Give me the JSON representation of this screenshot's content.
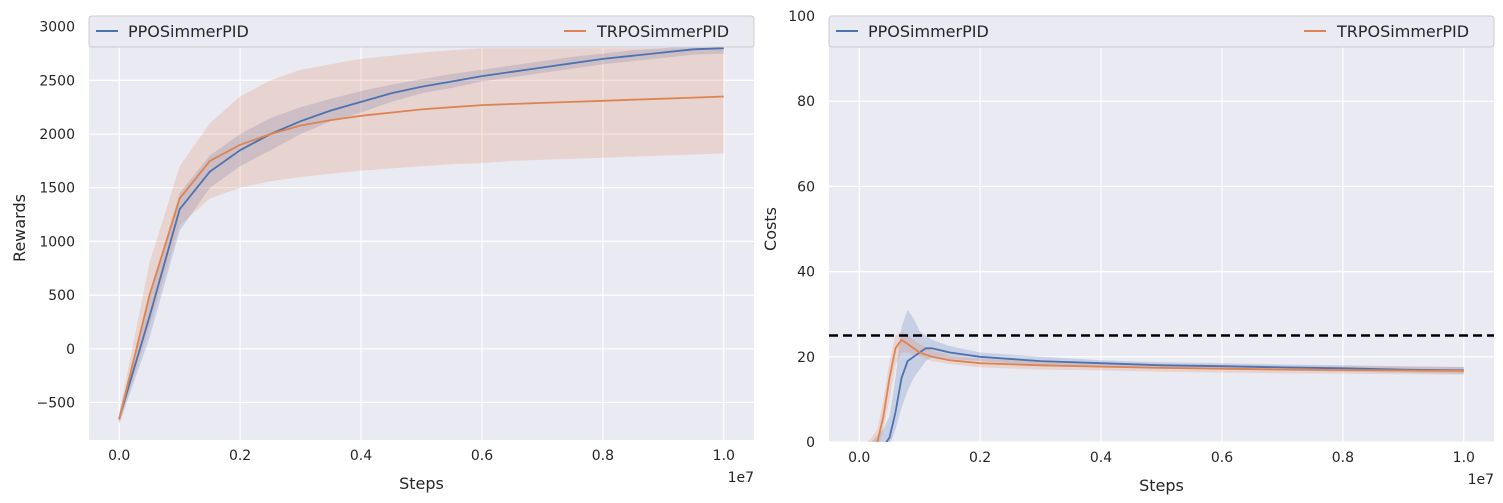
{
  "chart_data": [
    {
      "type": "line",
      "title": "",
      "xlabel": "Steps",
      "ylabel": "Rewards",
      "x_offset_text": "1e7",
      "xlim": [
        -0.05,
        1.05
      ],
      "ylim": [
        -850,
        3100
      ],
      "xticks": [
        0.0,
        0.2,
        0.4,
        0.6,
        0.8,
        1.0
      ],
      "xtick_labels": [
        "0.0",
        "0.2",
        "0.4",
        "0.6",
        "0.8",
        "1.0"
      ],
      "yticks": [
        -500,
        0,
        500,
        1000,
        1500,
        2000,
        2500,
        3000
      ],
      "ytick_labels": [
        "−500",
        "0",
        "500",
        "1000",
        "1500",
        "2000",
        "2500",
        "3000"
      ],
      "grid": true,
      "legend": "top, two columns",
      "series": [
        {
          "name": "PPOSimmerPID",
          "color": "#4c72b0",
          "x": [
            0.0,
            0.05,
            0.1,
            0.15,
            0.2,
            0.25,
            0.3,
            0.35,
            0.4,
            0.45,
            0.5,
            0.55,
            0.6,
            0.65,
            0.7,
            0.75,
            0.8,
            0.85,
            0.9,
            0.95,
            1.0
          ],
          "y": [
            -650,
            300,
            1300,
            1650,
            1850,
            2000,
            2120,
            2220,
            2300,
            2380,
            2440,
            2490,
            2540,
            2580,
            2620,
            2660,
            2700,
            2730,
            2760,
            2790,
            2800
          ],
          "lower": [
            -700,
            100,
            1100,
            1500,
            1700,
            1850,
            2000,
            2120,
            2200,
            2300,
            2380,
            2430,
            2490,
            2530,
            2570,
            2610,
            2650,
            2680,
            2710,
            2740,
            2750
          ],
          "upper": [
            -600,
            500,
            1450,
            1800,
            2000,
            2150,
            2250,
            2330,
            2400,
            2460,
            2510,
            2560,
            2600,
            2640,
            2680,
            2720,
            2750,
            2780,
            2800,
            2830,
            2850
          ]
        },
        {
          "name": "TRPOSimmerPID",
          "color": "#dd8452",
          "x": [
            0.0,
            0.05,
            0.1,
            0.15,
            0.2,
            0.25,
            0.3,
            0.35,
            0.4,
            0.45,
            0.5,
            0.55,
            0.6,
            0.65,
            0.7,
            0.75,
            0.8,
            0.85,
            0.9,
            0.95,
            1.0
          ],
          "y": [
            -660,
            500,
            1400,
            1750,
            1900,
            2000,
            2080,
            2130,
            2170,
            2200,
            2230,
            2250,
            2270,
            2280,
            2290,
            2300,
            2310,
            2320,
            2330,
            2340,
            2350
          ],
          "lower": [
            -700,
            200,
            1150,
            1400,
            1500,
            1560,
            1600,
            1630,
            1660,
            1680,
            1700,
            1720,
            1730,
            1750,
            1760,
            1770,
            1780,
            1790,
            1800,
            1810,
            1820
          ],
          "upper": [
            -600,
            800,
            1700,
            2100,
            2350,
            2500,
            2600,
            2650,
            2700,
            2730,
            2760,
            2780,
            2800,
            2800,
            2800,
            2800,
            2800,
            2800,
            2800,
            2800,
            2800
          ]
        }
      ]
    },
    {
      "type": "line",
      "title": "",
      "xlabel": "Steps",
      "ylabel": "Costs",
      "x_offset_text": "1e7",
      "xlim": [
        -0.05,
        1.05
      ],
      "ylim": [
        0,
        100
      ],
      "xticks": [
        0.0,
        0.2,
        0.4,
        0.6,
        0.8,
        1.0
      ],
      "xtick_labels": [
        "0.0",
        "0.2",
        "0.4",
        "0.6",
        "0.8",
        "1.0"
      ],
      "yticks": [
        0,
        20,
        40,
        60,
        80,
        100
      ],
      "ytick_labels": [
        "0",
        "20",
        "40",
        "60",
        "80",
        "100"
      ],
      "grid": true,
      "legend": "top, two columns",
      "threshold": {
        "value": 25,
        "color": "#000000"
      },
      "series": [
        {
          "name": "PPOSimmerPID",
          "color": "#4c72b0",
          "x": [
            0.0,
            0.02,
            0.04,
            0.05,
            0.06,
            0.07,
            0.08,
            0.09,
            0.1,
            0.11,
            0.12,
            0.15,
            0.2,
            0.3,
            0.4,
            0.5,
            0.6,
            0.7,
            0.8,
            0.9,
            1.0
          ],
          "y": [
            -5,
            -3,
            -1,
            1,
            7,
            15,
            19,
            20,
            21,
            22,
            22,
            21,
            20,
            19,
            18.5,
            18,
            17.8,
            17.5,
            17.3,
            17,
            16.8
          ],
          "lower": [
            -8,
            -6,
            -3,
            -1,
            3,
            8,
            12,
            15,
            17,
            19,
            20,
            19.5,
            19,
            18,
            17.8,
            17.3,
            17,
            16.8,
            16.5,
            16.3,
            16
          ],
          "upper": [
            -2,
            0,
            3,
            6,
            15,
            27,
            31,
            29,
            26,
            25,
            24,
            22.5,
            21,
            20,
            19.2,
            18.7,
            18.5,
            18.2,
            18,
            17.8,
            17.6
          ]
        },
        {
          "name": "TRPOSimmerPID",
          "color": "#dd8452",
          "x": [
            0.0,
            0.02,
            0.03,
            0.04,
            0.05,
            0.06,
            0.07,
            0.08,
            0.09,
            0.1,
            0.12,
            0.15,
            0.2,
            0.3,
            0.4,
            0.5,
            0.6,
            0.7,
            0.8,
            0.9,
            1.0
          ],
          "y": [
            -5,
            -2,
            0,
            6,
            15,
            22,
            24,
            23,
            22,
            21,
            20,
            19.2,
            18.5,
            18,
            17.7,
            17.4,
            17.2,
            17,
            16.9,
            16.8,
            16.7
          ],
          "lower": [
            -8,
            -5,
            -2,
            3,
            10,
            18,
            21,
            21,
            20.5,
            20,
            19,
            18.3,
            17.5,
            17,
            16.8,
            16.5,
            16.3,
            16.1,
            16,
            15.9,
            15.8
          ],
          "upper": [
            -2,
            1,
            3,
            10,
            19,
            25,
            26,
            25,
            24,
            23,
            21.5,
            20.2,
            19.5,
            19,
            18.6,
            18.3,
            18.1,
            17.9,
            17.8,
            17.7,
            17.6
          ]
        }
      ]
    }
  ]
}
